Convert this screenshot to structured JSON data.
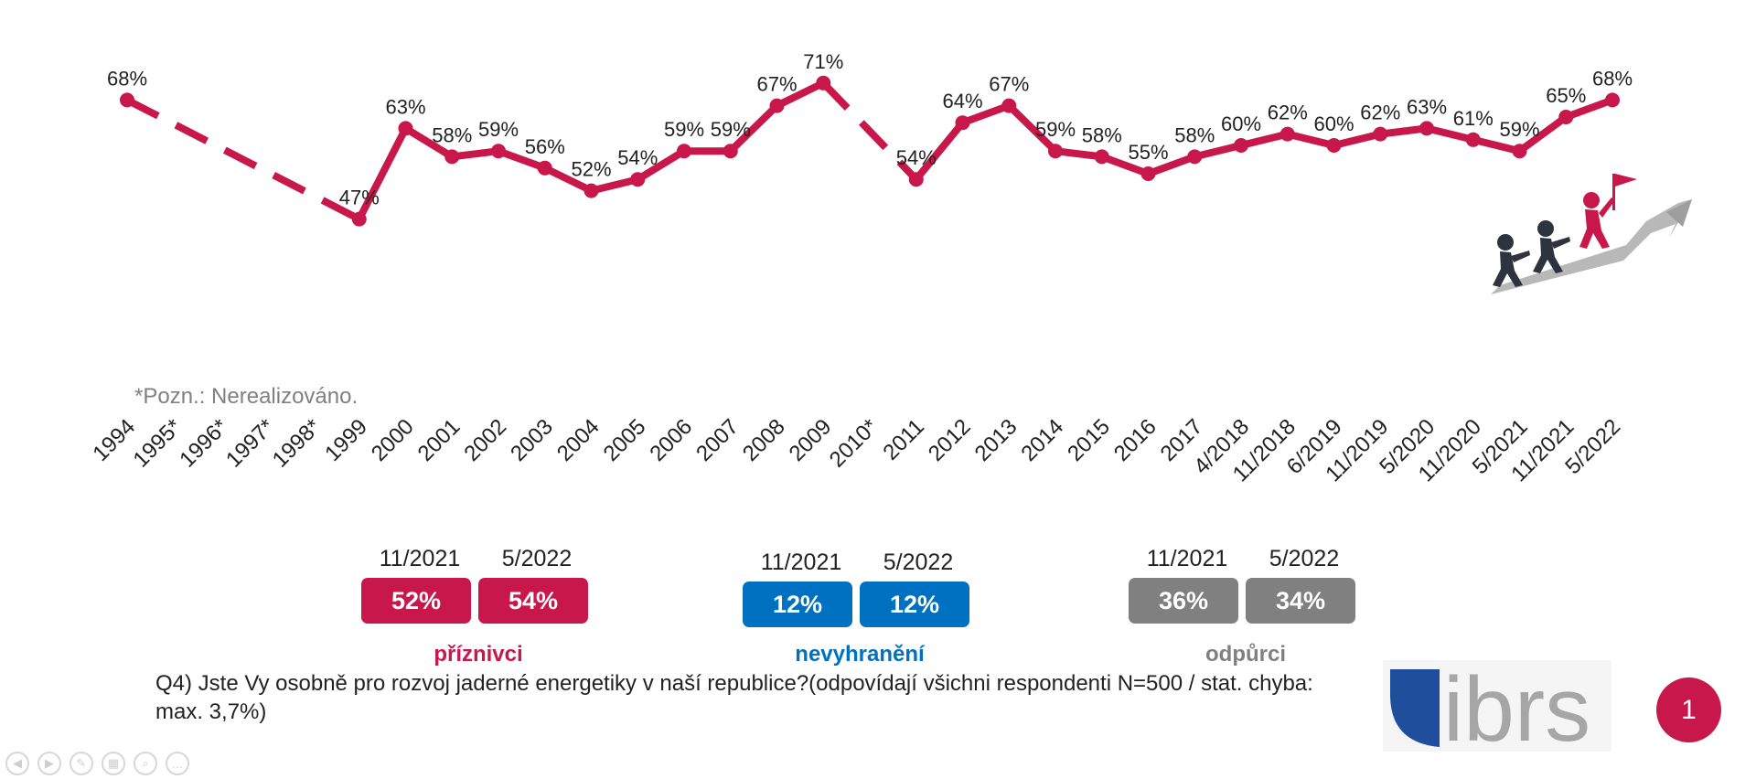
{
  "chart_data": {
    "type": "line",
    "categories": [
      "1994",
      "1995*",
      "1996*",
      "1997*",
      "1998*",
      "1999",
      "2000",
      "2001",
      "2002",
      "2003",
      "2004",
      "2005",
      "2006",
      "2007",
      "2008",
      "2009",
      "2010*",
      "2011",
      "2012",
      "2013",
      "2014",
      "2015",
      "2016",
      "2017",
      "4/2018",
      "11/2018",
      "6/2019",
      "11/2019",
      "5/2020",
      "11/2020",
      "5/2021",
      "11/2021",
      "5/2022"
    ],
    "values": [
      68,
      null,
      null,
      null,
      null,
      47,
      63,
      58,
      59,
      56,
      52,
      54,
      59,
      59,
      67,
      71,
      null,
      54,
      64,
      67,
      59,
      58,
      55,
      58,
      60,
      62,
      60,
      62,
      63,
      61,
      59,
      65,
      68
    ],
    "labels": [
      "68%",
      "",
      "",
      "",
      "",
      "47%",
      "63%",
      "58%",
      "59%",
      "56%",
      "52%",
      "54%",
      "59%",
      "59%",
      "67%",
      "71%",
      "",
      "54%",
      "64%",
      "67%",
      "59%",
      "58%",
      "55%",
      "58%",
      "60%",
      "62%",
      "60%",
      "62%",
      "63%",
      "61%",
      "59%",
      "65%",
      "68%"
    ],
    "color": "#c8174b",
    "dashed_gaps": true,
    "ylim": [
      40,
      80
    ],
    "grid": false
  },
  "note": "*Pozn.: Nerealizováno.",
  "summary": [
    {
      "p1": "11/2021",
      "p2": "5/2022",
      "v1": "52%",
      "v2": "54%",
      "label": "příznivci",
      "color": "#c8174b"
    },
    {
      "p1": "11/2021",
      "p2": "5/2022",
      "v1": "12%",
      "v2": "12%",
      "label": "nevyhranění",
      "color": "#0070c0"
    },
    {
      "p1": "11/2021",
      "p2": "5/2022",
      "v1": "36%",
      "v2": "34%",
      "label": "odpůrci",
      "color": "#808080"
    }
  ],
  "question": "Q4) Jste Vy osobně pro rozvoj jaderné energetiky v naší republice?(odpovídají všichni respondenti N=500 / stat. chyba: max. 3,7%)",
  "logo_text": "ibrs",
  "page_number": "1",
  "colors": {
    "primary": "#c8174b",
    "blue": "#0070c0",
    "gray": "#808080",
    "logo_blue": "#1f4e9c"
  },
  "toolbar_icons": [
    "prev-icon",
    "next-icon",
    "pen-icon",
    "slides-icon",
    "zoom-icon",
    "more-icon"
  ]
}
